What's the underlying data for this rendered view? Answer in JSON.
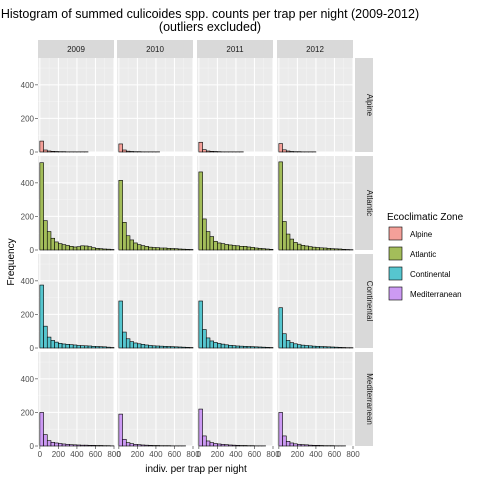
{
  "chart_data": {
    "type": "bar",
    "subtype": "faceted-histogram",
    "title": "Histogram of summed culicoides spp. counts per trap per night (2009-2012)",
    "subtitle": "(outliers excluded)",
    "xlabel": "indiv. per trap per night",
    "ylabel": "Frequency",
    "xlim": [
      -20,
      800
    ],
    "ylim": [
      0,
      560
    ],
    "x_ticks": [
      0,
      200,
      400,
      600,
      800
    ],
    "y_ticks": [
      0,
      200,
      400
    ],
    "bin_width": 40,
    "bin_starts": [
      0,
      40,
      80,
      120,
      160,
      200,
      240,
      280,
      320,
      360,
      400,
      440,
      480,
      520,
      560,
      600,
      640,
      680,
      720,
      760
    ],
    "columns": [
      "2009",
      "2010",
      "2011",
      "2012"
    ],
    "rows": [
      "Alpine",
      "Atlantic",
      "Continental",
      "Mediterranean"
    ],
    "grid": true,
    "legend": {
      "title": "Ecoclimatic Zone",
      "position": "right",
      "entries": [
        {
          "label": "Alpine",
          "color": "#f4a099"
        },
        {
          "label": "Atlantic",
          "color": "#a3bd5a"
        },
        {
          "label": "Continental",
          "color": "#56c6cf"
        },
        {
          "label": "Mediterranean",
          "color": "#cc9af3"
        }
      ]
    },
    "series": [
      {
        "row": "Alpine",
        "column": "2009",
        "values": [
          65,
          12,
          6,
          4,
          3,
          2,
          2,
          1,
          1,
          1,
          1,
          1,
          1,
          0,
          0,
          0,
          0,
          0,
          0,
          0
        ]
      },
      {
        "row": "Alpine",
        "column": "2010",
        "values": [
          48,
          12,
          5,
          3,
          2,
          2,
          1,
          1,
          1,
          1,
          1,
          0,
          0,
          0,
          0,
          0,
          0,
          0,
          0,
          0
        ]
      },
      {
        "row": "Alpine",
        "column": "2011",
        "values": [
          58,
          14,
          6,
          4,
          3,
          2,
          1,
          1,
          1,
          1,
          1,
          1,
          0,
          0,
          0,
          0,
          0,
          0,
          0,
          0
        ]
      },
      {
        "row": "Alpine",
        "column": "2012",
        "values": [
          50,
          13,
          6,
          3,
          2,
          2,
          1,
          1,
          1,
          1,
          0,
          0,
          0,
          0,
          0,
          0,
          0,
          0,
          0,
          0
        ]
      },
      {
        "row": "Atlantic",
        "column": "2009",
        "values": [
          520,
          175,
          110,
          70,
          48,
          38,
          32,
          27,
          22,
          18,
          20,
          25,
          24,
          20,
          14,
          10,
          8,
          6,
          5,
          3
        ]
      },
      {
        "row": "Atlantic",
        "column": "2010",
        "values": [
          415,
          165,
          85,
          60,
          42,
          32,
          26,
          22,
          17,
          15,
          14,
          12,
          12,
          10,
          9,
          8,
          6,
          5,
          4,
          3
        ]
      },
      {
        "row": "Atlantic",
        "column": "2011",
        "values": [
          465,
          185,
          110,
          80,
          52,
          42,
          38,
          33,
          30,
          27,
          25,
          22,
          22,
          18,
          16,
          12,
          10,
          8,
          6,
          4
        ]
      },
      {
        "row": "Atlantic",
        "column": "2012",
        "values": [
          525,
          170,
          95,
          65,
          45,
          35,
          28,
          24,
          20,
          17,
          15,
          13,
          12,
          10,
          8,
          7,
          6,
          4,
          3,
          2
        ]
      },
      {
        "row": "Continental",
        "column": "2009",
        "values": [
          375,
          130,
          65,
          45,
          35,
          28,
          24,
          22,
          20,
          18,
          15,
          14,
          13,
          12,
          10,
          9,
          8,
          7,
          5,
          3
        ]
      },
      {
        "row": "Continental",
        "column": "2010",
        "values": [
          280,
          95,
          55,
          38,
          30,
          25,
          22,
          18,
          15,
          13,
          12,
          11,
          10,
          9,
          8,
          7,
          6,
          5,
          4,
          3
        ]
      },
      {
        "row": "Continental",
        "column": "2011",
        "values": [
          280,
          110,
          60,
          42,
          33,
          27,
          23,
          19,
          16,
          14,
          12,
          11,
          10,
          9,
          8,
          7,
          6,
          5,
          4,
          3
        ]
      },
      {
        "row": "Continental",
        "column": "2012",
        "values": [
          240,
          85,
          45,
          32,
          25,
          20,
          17,
          15,
          13,
          11,
          10,
          9,
          8,
          7,
          6,
          5,
          4,
          3,
          2,
          2
        ]
      },
      {
        "row": "Mediterranean",
        "column": "2009",
        "values": [
          200,
          68,
          32,
          22,
          18,
          15,
          12,
          10,
          8,
          7,
          6,
          5,
          5,
          4,
          4,
          3,
          3,
          2,
          2,
          1
        ]
      },
      {
        "row": "Mediterranean",
        "column": "2010",
        "values": [
          190,
          40,
          20,
          14,
          10,
          8,
          6,
          5,
          4,
          3,
          3,
          2,
          2,
          2,
          1,
          1,
          1,
          1,
          0,
          0
        ]
      },
      {
        "row": "Mediterranean",
        "column": "2011",
        "values": [
          220,
          60,
          30,
          20,
          15,
          12,
          10,
          8,
          6,
          5,
          4,
          3,
          3,
          2,
          2,
          1,
          1,
          1,
          0,
          0
        ]
      },
      {
        "row": "Mediterranean",
        "column": "2012",
        "values": [
          200,
          60,
          28,
          18,
          13,
          10,
          8,
          7,
          5,
          4,
          4,
          3,
          2,
          2,
          2,
          1,
          1,
          1,
          0,
          0
        ]
      }
    ]
  }
}
